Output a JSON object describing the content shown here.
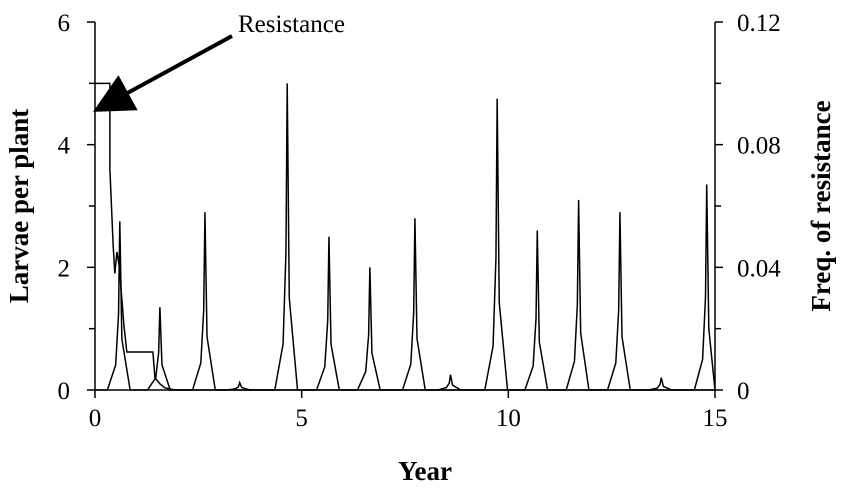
{
  "chart_data": {
    "type": "line",
    "xlabel": "Year",
    "ylabel": "Larvae per plant",
    "y2label": "Freq. of resistance",
    "xlim": [
      0,
      15
    ],
    "xticks": [
      0,
      5,
      10,
      15
    ],
    "ylim": [
      0,
      6
    ],
    "yticks": [
      0,
      2,
      4,
      6
    ],
    "yminorticks": [
      1,
      3,
      5
    ],
    "y2lim": [
      0,
      0.12
    ],
    "y2ticks": [
      0,
      0.04,
      0.08,
      0.12
    ],
    "y2minorticks": [
      0.02,
      0.06,
      0.1
    ],
    "annotation": "Resistance",
    "series": [
      {
        "color": "#000000",
        "x": [
          0,
          0.3,
          0.5,
          0.57,
          0.6,
          0.65,
          0.85,
          1.27,
          1.47,
          1.54,
          1.57,
          1.62,
          1.82,
          2.36,
          2.56,
          2.63,
          2.66,
          2.71,
          2.91,
          3.2,
          3.4,
          3.47,
          3.5,
          3.55,
          3.75,
          4.35,
          4.55,
          4.62,
          4.65,
          4.7,
          4.9,
          5.36,
          5.56,
          5.63,
          5.66,
          5.71,
          5.91,
          6.35,
          6.55,
          6.62,
          6.65,
          6.7,
          6.9,
          7.44,
          7.64,
          7.71,
          7.74,
          7.79,
          7.99,
          8.3,
          8.5,
          8.57,
          8.6,
          8.65,
          8.85,
          9.43,
          9.63,
          9.7,
          9.73,
          9.78,
          9.98,
          10.4,
          10.6,
          10.67,
          10.7,
          10.75,
          10.95,
          11.4,
          11.6,
          11.67,
          11.7,
          11.75,
          11.95,
          12.4,
          12.6,
          12.67,
          12.7,
          12.75,
          12.95,
          13.4,
          13.6,
          13.67,
          13.7,
          13.75,
          13.95,
          14.5,
          14.7,
          14.77,
          14.8,
          14.85,
          15
        ],
        "values": [
          0,
          0,
          0.41,
          1.24,
          2.75,
          0.83,
          0,
          0,
          0.2,
          0.61,
          1.35,
          0.41,
          0,
          0,
          0.44,
          1.31,
          2.9,
          0.87,
          0,
          0,
          0.02,
          0.05,
          0.12,
          0.04,
          0,
          0,
          0.75,
          2.25,
          5.0,
          1.5,
          0,
          0,
          0.38,
          1.13,
          2.5,
          0.75,
          0,
          0,
          0.3,
          0.9,
          2.0,
          0.6,
          0,
          0,
          0.42,
          1.26,
          2.8,
          0.84,
          0,
          0,
          0.04,
          0.11,
          0.25,
          0.08,
          0,
          0,
          0.71,
          2.14,
          4.75,
          1.43,
          0,
          0,
          0.39,
          1.17,
          2.6,
          0.78,
          0,
          0,
          0.47,
          1.4,
          3.1,
          0.93,
          0,
          0,
          0.44,
          1.31,
          2.9,
          0.87,
          0,
          0,
          0.03,
          0.09,
          0.2,
          0.06,
          0,
          0,
          0.5,
          1.51,
          3.35,
          1.0,
          0
        ]
      },
      {
        "color": "#000000",
        "axis": "y2",
        "x": [
          0,
          0.36,
          0.36,
          0.44,
          0.48,
          0.53,
          0.58,
          0.63,
          0.7,
          0.77,
          1.4,
          1.45,
          1.57,
          1.69,
          1.94,
          15
        ],
        "values": [
          0.1,
          0.1,
          0.072,
          0.047,
          0.038,
          0.045,
          0.041,
          0.033,
          0.021,
          0.0124,
          0.0124,
          0.004,
          0.002,
          0.0007,
          0,
          0
        ]
      }
    ]
  }
}
